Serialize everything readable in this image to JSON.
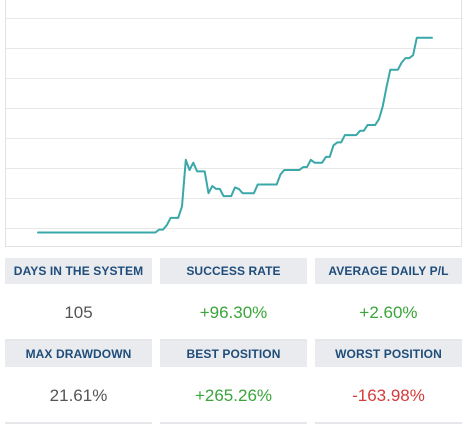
{
  "chart_data": {
    "type": "line",
    "title": "",
    "xlabel": "",
    "ylabel": "",
    "grid": true,
    "line_color": "#3aa8a8",
    "y_gridlines": 8,
    "x": [
      1,
      2,
      3,
      4,
      5,
      6,
      7,
      8,
      9,
      10,
      11,
      12,
      13,
      14,
      15,
      16,
      17,
      18,
      19,
      20,
      21,
      22,
      23,
      24,
      25,
      26,
      27,
      28,
      29,
      30,
      31,
      32,
      33,
      34,
      35,
      36,
      37,
      38,
      39,
      40,
      41,
      42,
      43,
      44,
      45,
      46,
      47,
      48,
      49,
      50,
      51,
      52,
      53,
      54,
      55,
      56,
      57,
      58,
      59,
      60,
      61,
      62,
      63,
      64,
      65,
      66,
      67,
      68,
      69,
      70,
      71,
      72,
      73,
      74,
      75,
      76,
      77,
      78,
      79,
      80,
      81,
      82,
      83,
      84,
      85,
      86,
      87,
      88,
      89,
      90,
      91,
      92,
      93,
      94,
      95,
      96,
      97,
      98,
      99,
      100,
      101,
      102,
      103,
      104,
      105
    ],
    "values": [
      0,
      0,
      0,
      0,
      0,
      0,
      0,
      0,
      0,
      0,
      0,
      0,
      0,
      0,
      0,
      0,
      0,
      0,
      0,
      0,
      0,
      0,
      0,
      0,
      0,
      0,
      0,
      0,
      0,
      0,
      0,
      0,
      2,
      2,
      5,
      10,
      10,
      10,
      18,
      50,
      43,
      48,
      42,
      42,
      42,
      27,
      32,
      30,
      30,
      25,
      25,
      25,
      31,
      30,
      27,
      27,
      27,
      27,
      33,
      33,
      33,
      33,
      33,
      33,
      40,
      43,
      43,
      43,
      43,
      43,
      45,
      45,
      50,
      48,
      48,
      48,
      52,
      52,
      60,
      62,
      62,
      67,
      67,
      67,
      67,
      70,
      70,
      74,
      74,
      74,
      78,
      87,
      100,
      112,
      112,
      112,
      117,
      120,
      120,
      122,
      134,
      134,
      134,
      134,
      134
    ],
    "ylim": [
      -10,
      160
    ]
  },
  "stats": {
    "days_in_system": {
      "label": "DAYS IN THE SYSTEM",
      "value": "105"
    },
    "success_rate": {
      "label": "SUCCESS RATE",
      "value": "+96.30%"
    },
    "avg_daily_pl": {
      "label": "AVERAGE DAILY P/L",
      "value": "+2.60%"
    },
    "max_drawdown": {
      "label": "MAX DRAWDOWN",
      "value": "21.61%"
    },
    "best_position": {
      "label": "BEST POSITION",
      "value": "+265.26%"
    },
    "worst_position": {
      "label": "WORST POSITION",
      "value": "-163.98%"
    }
  }
}
